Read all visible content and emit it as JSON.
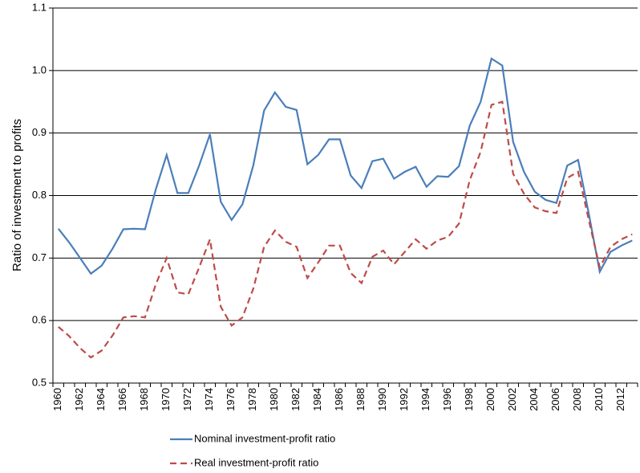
{
  "chart_data": {
    "type": "line",
    "y_label": "Ratio of investment to profits",
    "categories": [
      "1960",
      null,
      "1962",
      null,
      "1964",
      null,
      "1966",
      null,
      "1968",
      null,
      "1970",
      null,
      "1972",
      null,
      "1974",
      null,
      "1976",
      null,
      "1978",
      null,
      "1980",
      null,
      "1982",
      null,
      "1984",
      null,
      "1986",
      null,
      "1988",
      null,
      "1990",
      null,
      "1992",
      null,
      "1994",
      null,
      "1996",
      null,
      "1998",
      null,
      "2000",
      null,
      "2002",
      null,
      "2004",
      null,
      "2006",
      null,
      "2008",
      null,
      "2010",
      null,
      "2012",
      null
    ],
    "series": [
      {
        "name": "Nominal investment-profit ratio",
        "color": "#4a7ebb",
        "dash": "solid",
        "values": [
          0.747,
          0.725,
          0.7,
          0.675,
          0.688,
          0.715,
          0.746,
          0.747,
          0.746,
          0.81,
          0.865,
          0.804,
          0.804,
          0.848,
          0.898,
          0.79,
          0.761,
          0.786,
          0.848,
          0.936,
          0.965,
          0.942,
          0.937,
          0.85,
          0.865,
          0.89,
          0.89,
          0.832,
          0.812,
          0.855,
          0.859,
          0.827,
          0.838,
          0.846,
          0.814,
          0.831,
          0.83,
          0.847,
          0.912,
          0.95,
          1.019,
          1.008,
          0.886,
          0.838,
          0.806,
          0.793,
          0.788,
          0.848,
          0.857,
          0.77,
          0.678,
          0.71,
          0.72,
          0.728
        ]
      },
      {
        "name": "Real investment-profit ratio",
        "color": "#be4b48",
        "dash": "dashed",
        "values": [
          0.59,
          0.575,
          0.556,
          0.541,
          0.552,
          0.576,
          0.605,
          0.607,
          0.605,
          0.658,
          0.7,
          0.645,
          0.642,
          0.685,
          0.73,
          0.622,
          0.592,
          0.605,
          0.651,
          0.718,
          0.744,
          0.726,
          0.718,
          0.668,
          0.693,
          0.72,
          0.72,
          0.676,
          0.66,
          0.702,
          0.712,
          0.69,
          0.71,
          0.73,
          0.715,
          0.728,
          0.734,
          0.755,
          0.825,
          0.87,
          0.945,
          0.95,
          0.835,
          0.803,
          0.781,
          0.775,
          0.772,
          0.828,
          0.838,
          0.76,
          0.685,
          0.718,
          0.73,
          0.738
        ]
      }
    ],
    "ylim": [
      0.5,
      1.1
    ],
    "yticks": [
      0.5,
      0.6,
      0.7,
      0.8,
      0.9,
      {
        "value": 1,
        "label": "1.0"
      },
      1.1
    ],
    "grid": true,
    "legend": "bottom"
  }
}
